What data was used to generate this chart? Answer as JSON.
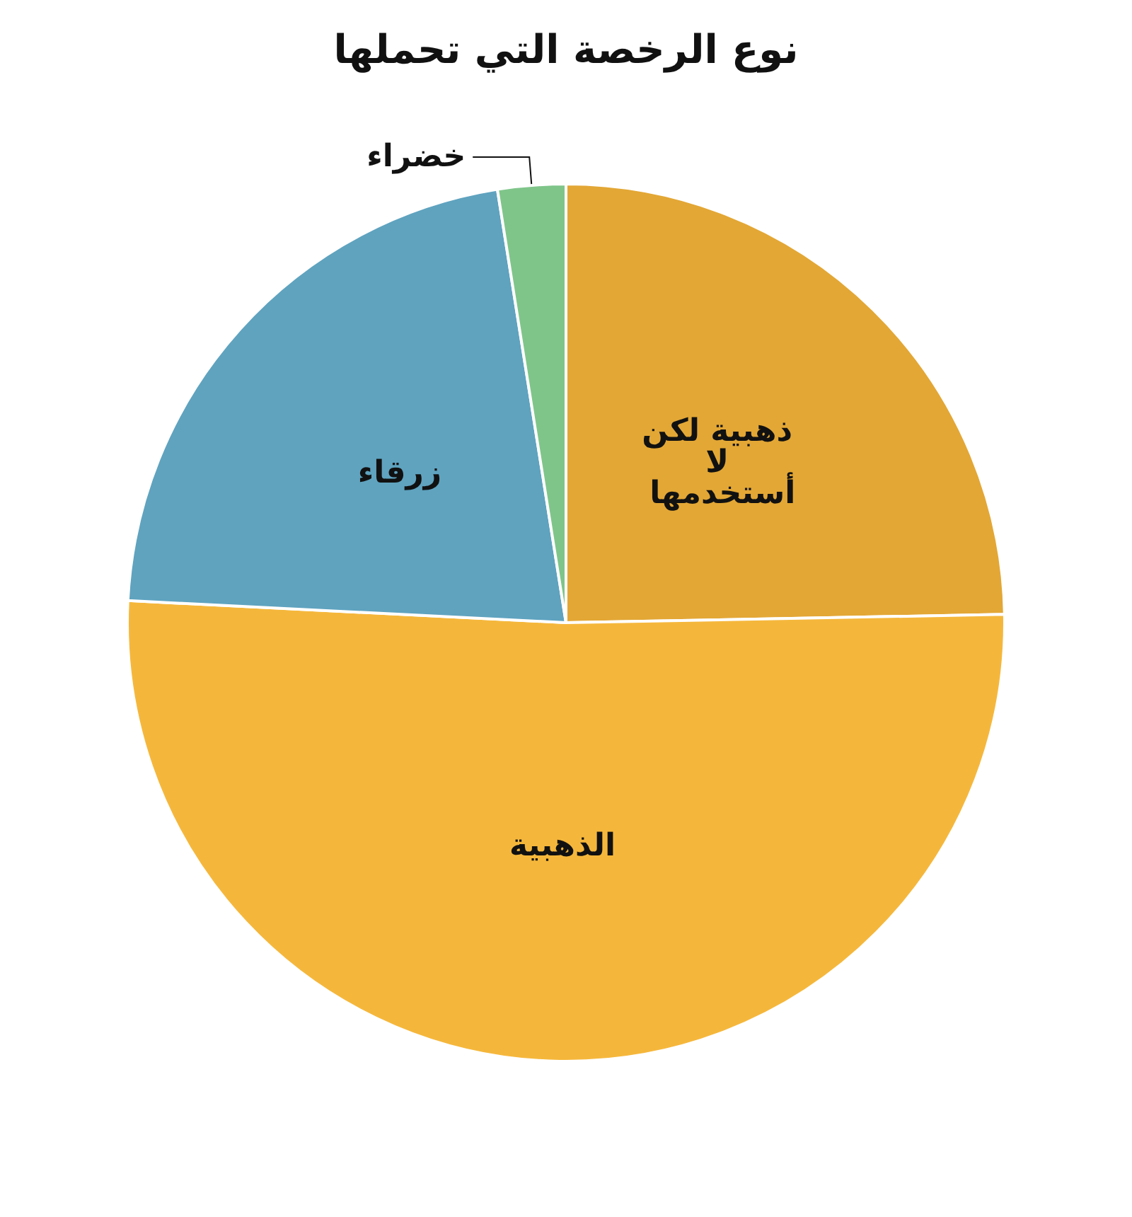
{
  "chart_data": {
    "type": "pie",
    "title": "نوع الرخصة التي تحملها",
    "categories": [
      "ذهبية لكن لا أستخدمها",
      "الذهبية",
      "زرقاء",
      "خضراء"
    ],
    "values": [
      24.7,
      51.1,
      21.7,
      2.5
    ],
    "colors": [
      "#e3a735",
      "#f5b73b",
      "#5fa3bf",
      "#7fc58a"
    ],
    "legend": false
  }
}
